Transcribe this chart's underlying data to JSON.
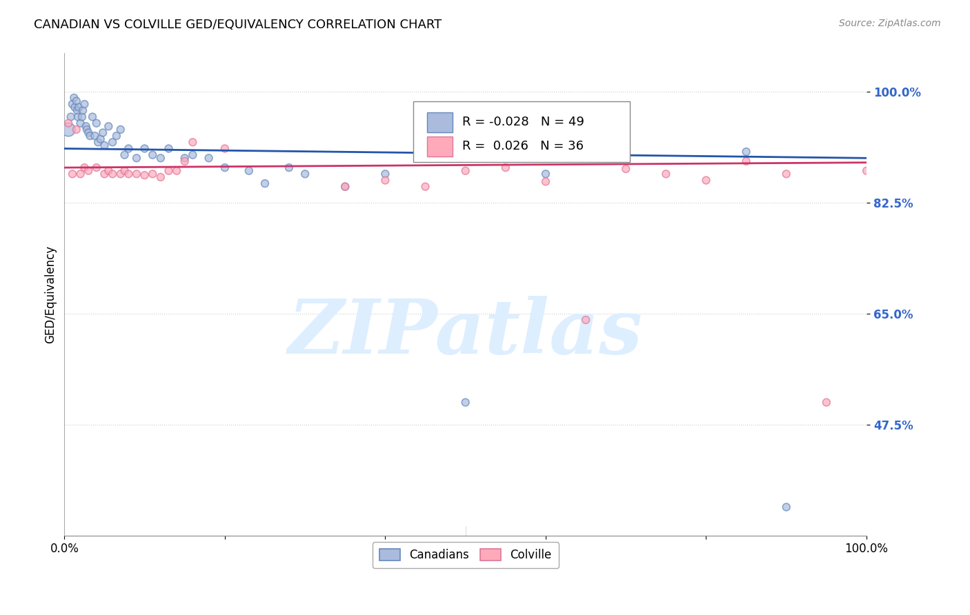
{
  "title": "CANADIAN VS COLVILLE GED/EQUIVALENCY CORRELATION CHART",
  "source": "Source: ZipAtlas.com",
  "ylabel": "GED/Equivalency",
  "xlim": [
    0.0,
    1.0
  ],
  "ylim": [
    0.3,
    1.06
  ],
  "yticks": [
    1.0,
    0.825,
    0.65,
    0.475
  ],
  "ytick_labels": [
    "100.0%",
    "82.5%",
    "65.0%",
    "47.5%"
  ],
  "xticks": [
    0.0,
    0.2,
    0.4,
    0.6,
    0.8,
    1.0
  ],
  "xtick_labels": [
    "0.0%",
    "",
    "",
    "",
    "",
    "100.0%"
  ],
  "blue_R": -0.028,
  "blue_N": 49,
  "pink_R": 0.026,
  "pink_N": 36,
  "blue_color": "#aabbdd",
  "pink_color": "#ffaabb",
  "blue_edge_color": "#6688bb",
  "pink_edge_color": "#dd7799",
  "blue_line_color": "#2255aa",
  "pink_line_color": "#cc3366",
  "watermark": "ZIPatlas",
  "watermark_color": "#ddeeff",
  "legend_blue_label": "Canadians",
  "legend_pink_label": "Colville",
  "blue_line_start_y": 0.91,
  "blue_line_end_y": 0.895,
  "pink_line_start_y": 0.88,
  "pink_line_end_y": 0.888,
  "canadians_x": [
    0.005,
    0.008,
    0.01,
    0.012,
    0.013,
    0.015,
    0.016,
    0.017,
    0.018,
    0.02,
    0.022,
    0.023,
    0.025,
    0.027,
    0.028,
    0.03,
    0.032,
    0.035,
    0.038,
    0.04,
    0.042,
    0.045,
    0.048,
    0.05,
    0.055,
    0.06,
    0.065,
    0.07,
    0.075,
    0.08,
    0.09,
    0.1,
    0.11,
    0.12,
    0.13,
    0.15,
    0.16,
    0.18,
    0.2,
    0.23,
    0.25,
    0.28,
    0.3,
    0.35,
    0.4,
    0.5,
    0.6,
    0.85,
    0.9
  ],
  "canadians_y": [
    0.94,
    0.96,
    0.98,
    0.99,
    0.975,
    0.985,
    0.97,
    0.96,
    0.975,
    0.95,
    0.96,
    0.97,
    0.98,
    0.945,
    0.94,
    0.935,
    0.93,
    0.96,
    0.93,
    0.95,
    0.92,
    0.925,
    0.935,
    0.915,
    0.945,
    0.92,
    0.93,
    0.94,
    0.9,
    0.91,
    0.895,
    0.91,
    0.9,
    0.895,
    0.91,
    0.895,
    0.9,
    0.895,
    0.88,
    0.875,
    0.855,
    0.88,
    0.87,
    0.85,
    0.87,
    0.51,
    0.87,
    0.905,
    0.345
  ],
  "canadians_size": [
    200,
    60,
    60,
    60,
    60,
    60,
    60,
    60,
    60,
    60,
    60,
    60,
    60,
    60,
    60,
    60,
    60,
    60,
    60,
    60,
    60,
    60,
    60,
    60,
    60,
    60,
    60,
    60,
    60,
    60,
    60,
    60,
    60,
    60,
    60,
    60,
    60,
    60,
    60,
    60,
    60,
    60,
    60,
    60,
    60,
    60,
    60,
    60,
    60
  ],
  "colville_x": [
    0.005,
    0.01,
    0.015,
    0.02,
    0.025,
    0.03,
    0.04,
    0.05,
    0.055,
    0.06,
    0.07,
    0.075,
    0.08,
    0.09,
    0.1,
    0.11,
    0.12,
    0.13,
    0.14,
    0.15,
    0.16,
    0.2,
    0.35,
    0.4,
    0.45,
    0.5,
    0.55,
    0.6,
    0.65,
    0.7,
    0.75,
    0.8,
    0.85,
    0.9,
    0.95,
    1.0
  ],
  "colville_y": [
    0.95,
    0.87,
    0.94,
    0.87,
    0.88,
    0.875,
    0.88,
    0.87,
    0.875,
    0.87,
    0.87,
    0.875,
    0.87,
    0.87,
    0.868,
    0.87,
    0.865,
    0.875,
    0.875,
    0.89,
    0.92,
    0.91,
    0.85,
    0.86,
    0.85,
    0.875,
    0.88,
    0.858,
    0.64,
    0.878,
    0.87,
    0.86,
    0.89,
    0.87,
    0.51,
    0.875
  ],
  "colville_size": [
    60,
    60,
    60,
    60,
    60,
    60,
    60,
    60,
    60,
    60,
    60,
    60,
    60,
    60,
    60,
    60,
    60,
    60,
    60,
    60,
    60,
    60,
    60,
    60,
    60,
    60,
    60,
    60,
    60,
    60,
    60,
    60,
    60,
    60,
    60,
    60
  ]
}
